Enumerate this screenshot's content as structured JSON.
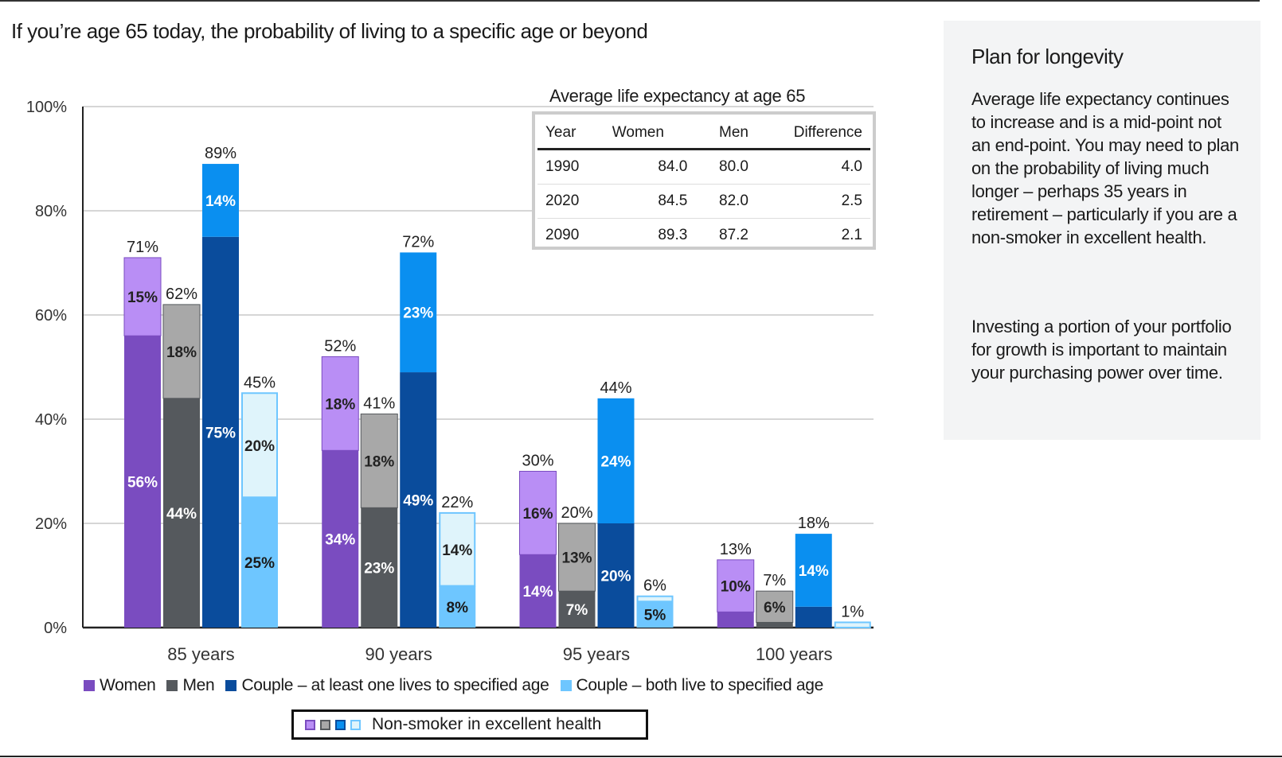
{
  "title": "If you’re age 65 today, the probability of living to a specific age or beyond",
  "chart_data": {
    "type": "bar",
    "stacked": true,
    "title": "If you’re age 65 today, the probability of living to a specific age or beyond",
    "categories": [
      "85 years",
      "90 years",
      "95 years",
      "100 years"
    ],
    "ylim": [
      0,
      100
    ],
    "yticks": [
      "0%",
      "20%",
      "40%",
      "60%",
      "80%",
      "100%"
    ],
    "grid": true,
    "legend_position": "bottom",
    "series": [
      {
        "name": "Women",
        "base": [
          56,
          34,
          14,
          3
        ],
        "non_smoker_extra": [
          15,
          18,
          16,
          10
        ],
        "total": [
          71,
          52,
          30,
          13
        ],
        "base_labels": [
          "56%",
          "34%",
          "14%",
          ""
        ],
        "extra_labels": [
          "15%",
          "18%",
          "16%",
          "10%"
        ],
        "total_labels": [
          "71%",
          "52%",
          "30%",
          "13%"
        ],
        "color": "#7a4cc0",
        "light": "#b98ef5"
      },
      {
        "name": "Men",
        "base": [
          44,
          23,
          7,
          1
        ],
        "non_smoker_extra": [
          18,
          18,
          13,
          6
        ],
        "total": [
          62,
          41,
          20,
          7
        ],
        "base_labels": [
          "44%",
          "23%",
          "7%",
          ""
        ],
        "extra_labels": [
          "18%",
          "18%",
          "13%",
          "6%"
        ],
        "total_labels": [
          "62%",
          "41%",
          "20%",
          "7%"
        ],
        "color": "#55595d",
        "light": "#a8a8a8"
      },
      {
        "name": "Couple – at least one lives to specified age",
        "base": [
          75,
          49,
          20,
          4
        ],
        "non_smoker_extra": [
          14,
          23,
          24,
          14
        ],
        "total": [
          89,
          72,
          44,
          18
        ],
        "base_labels": [
          "75%",
          "49%",
          "20%",
          ""
        ],
        "extra_labels": [
          "14%",
          "23%",
          "24%",
          "14%"
        ],
        "total_labels": [
          "89%",
          "72%",
          "44%",
          "18%"
        ],
        "color": "#0a4c9c",
        "light": "#0a8ff0"
      },
      {
        "name": "Couple – both live to specified age",
        "base": [
          25,
          8,
          5,
          0
        ],
        "non_smoker_extra": [
          20,
          14,
          1,
          1
        ],
        "total": [
          45,
          22,
          6,
          1
        ],
        "base_labels": [
          "25%",
          "8%",
          "5%",
          ""
        ],
        "extra_labels": [
          "20%",
          "14%",
          "",
          ""
        ],
        "total_labels": [
          "45%",
          "22%",
          "6%",
          "1%"
        ],
        "color": "#6ec6ff",
        "light": "#dff4fb"
      }
    ],
    "non_smoker_label": "Non-smoker in excellent health"
  },
  "table": {
    "title": "Average life expectancy at age 65",
    "headers": [
      "Year",
      "Women",
      "Men",
      "Difference"
    ],
    "rows": [
      [
        "1990",
        "84.0",
        "80.0",
        "4.0"
      ],
      [
        "2020",
        "84.5",
        "82.0",
        "2.5"
      ],
      [
        "2090",
        "89.3",
        "87.2",
        "2.1"
      ]
    ]
  },
  "panel": {
    "heading": "Plan for longevity",
    "p1": "Average life expectancy continues to increase and is a mid-point not an end-point. You may need to plan on the probability of living much longer – perhaps 35 years in retirement – particularly if you are a non-smoker in excellent health.",
    "p2": "Investing a portion of your portfolio for growth is important to maintain your purchasing power over time."
  }
}
